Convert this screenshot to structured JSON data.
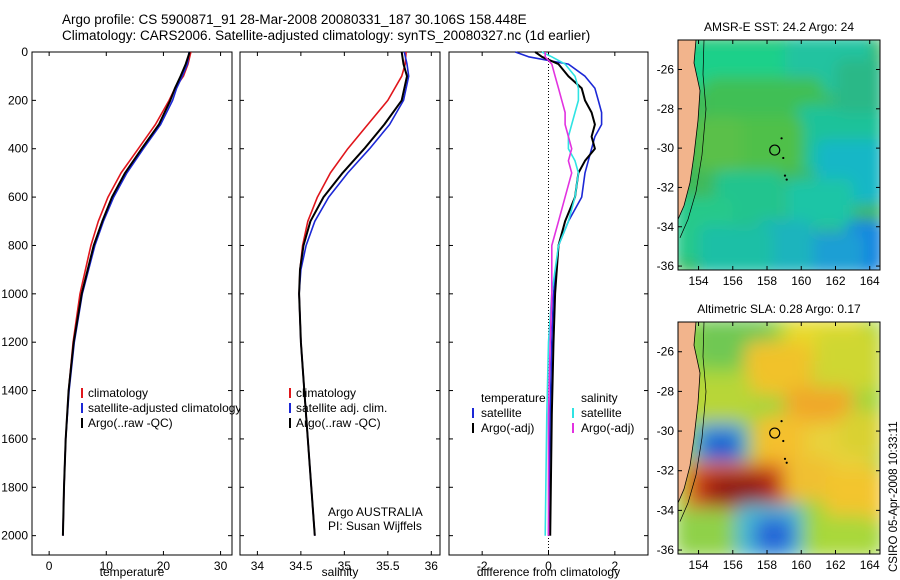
{
  "header": {
    "line1": "Argo profile: CS 5900871_91 28-Mar-2008 20080331_187 30.106S 158.448E",
    "line2": "Climatology: CARS2006. Satellite-adjusted climatology: synTS_20080327.nc (1d earlier)"
  },
  "footer_stamp": "CSIRO 05-Apr-2008 10:33:11",
  "colors": {
    "red": "#e0161c",
    "blue": "#1c28d6",
    "black": "#000000",
    "cyan": "#2fe3e3",
    "magenta": "#e232e0",
    "land": "#f2b48c"
  },
  "chart_data": [
    {
      "type": "line",
      "xlabel": "temperature",
      "ylabel": "",
      "xlim": [
        -3,
        32
      ],
      "ylim": [
        2080,
        0
      ],
      "xticks": [
        "0",
        "10",
        "20",
        "30"
      ],
      "yticks": [
        "0",
        "200",
        "400",
        "600",
        "800",
        "1000",
        "1200",
        "1400",
        "1600",
        "1800",
        "2000"
      ],
      "depth": [
        0,
        50,
        100,
        150,
        200,
        300,
        400,
        500,
        600,
        700,
        800,
        1000,
        1200,
        1400,
        1600,
        1800,
        2000
      ],
      "series": [
        {
          "name": "climatology",
          "color": "red",
          "values": [
            24.8,
            24.3,
            23.5,
            22.0,
            21.0,
            18.6,
            15.6,
            12.6,
            10.3,
            8.6,
            7.3,
            5.4,
            4.2,
            3.4,
            2.9,
            2.6,
            2.4
          ]
        },
        {
          "name": "satellite-adjusted climatology",
          "color": "blue",
          "values": [
            24.5,
            24.2,
            23.3,
            22.3,
            21.6,
            19.5,
            16.5,
            13.6,
            11.3,
            9.5,
            8.0,
            5.8,
            4.4,
            3.5,
            2.9,
            2.6,
            2.4
          ]
        },
        {
          "name": "Argo(..raw -QC)",
          "color": "black",
          "values": [
            24.6,
            23.9,
            23.0,
            22.0,
            21.2,
            19.2,
            16.2,
            13.3,
            11.0,
            9.3,
            7.8,
            5.7,
            4.3,
            3.4,
            2.9,
            2.6,
            2.4
          ]
        }
      ]
    },
    {
      "type": "line",
      "xlabel": "salinity",
      "ylabel": "",
      "xlim": [
        33.8,
        36.1
      ],
      "ylim": [
        2080,
        0
      ],
      "xticks": [
        "34",
        "34.5",
        "35",
        "35.5",
        "36"
      ],
      "depth": [
        0,
        50,
        100,
        200,
        300,
        400,
        500,
        600,
        700,
        800,
        900,
        1000,
        1200,
        1400,
        1600,
        1800,
        2000
      ],
      "series": [
        {
          "name": "climatology",
          "color": "red",
          "values": [
            35.71,
            35.7,
            35.66,
            35.5,
            35.27,
            35.04,
            34.84,
            34.69,
            34.58,
            34.52,
            34.49,
            34.48,
            34.5,
            34.54,
            34.58,
            34.62,
            34.66
          ]
        },
        {
          "name": "satellite adj. clim.",
          "color": "blue",
          "values": [
            35.69,
            35.72,
            35.74,
            35.68,
            35.52,
            35.29,
            35.04,
            34.82,
            34.66,
            34.56,
            34.5,
            34.48,
            34.5,
            34.54,
            34.58,
            34.62,
            34.66
          ]
        },
        {
          "name": "Argo(..raw -QC)",
          "color": "black",
          "values": [
            35.66,
            35.68,
            35.72,
            35.66,
            35.46,
            35.23,
            34.98,
            34.76,
            34.61,
            34.53,
            34.49,
            34.48,
            34.5,
            34.54,
            34.58,
            34.62,
            34.66
          ]
        }
      ],
      "annotation": [
        "Argo AUSTRALIA",
        "PI: Susan Wijffels"
      ]
    },
    {
      "type": "line",
      "xlabel": "difference from climatology",
      "ylabel": "",
      "xlim": [
        -3,
        3
      ],
      "ylim": [
        2080,
        0
      ],
      "xticks": [
        "-2",
        "0",
        "2"
      ],
      "depth": [
        0,
        20,
        50,
        100,
        150,
        200,
        250,
        300,
        350,
        400,
        450,
        500,
        600,
        700,
        800,
        1000,
        1200,
        1500,
        2000
      ],
      "legend_headers": [
        "temperature",
        "salinity"
      ],
      "series": [
        {
          "name": "satellite",
          "group": "temperature",
          "color": "blue",
          "values": [
            -1.0,
            -0.6,
            0.6,
            1.1,
            1.4,
            1.5,
            1.6,
            1.6,
            1.4,
            1.3,
            1.2,
            1.1,
            1.0,
            0.6,
            0.3,
            0.15,
            0.1,
            0.05,
            0.0
          ]
        },
        {
          "name": "Argo(-adj)",
          "group": "temperature",
          "color": "black",
          "values": [
            -0.4,
            -0.2,
            0.3,
            0.6,
            1.0,
            1.1,
            1.3,
            1.4,
            1.3,
            1.4,
            1.1,
            0.9,
            0.8,
            0.5,
            0.3,
            0.2,
            0.15,
            0.1,
            0.05
          ]
        },
        {
          "name": "satellite",
          "group": "salinity",
          "color": "cyan",
          "values": [
            -0.2,
            0.1,
            0.5,
            0.8,
            0.9,
            0.9,
            0.8,
            0.7,
            0.6,
            0.6,
            0.8,
            0.9,
            0.8,
            0.6,
            0.3,
            0.1,
            0.0,
            -0.05,
            -0.1
          ]
        },
        {
          "name": "Argo(-adj)",
          "group": "salinity",
          "color": "magenta",
          "values": [
            -0.1,
            -0.1,
            0.1,
            0.2,
            0.3,
            0.4,
            0.5,
            0.5,
            0.6,
            0.7,
            0.6,
            0.7,
            0.5,
            0.3,
            0.1,
            0.1,
            0.05,
            0.0,
            0.0
          ]
        }
      ]
    },
    {
      "type": "heatmap",
      "title": "AMSR-E SST: 24.2 Argo: 24",
      "xticks": [
        "154",
        "156",
        "158",
        "160",
        "162",
        "164"
      ],
      "yticks": [
        "-26",
        "-28",
        "-30",
        "-32",
        "-34",
        "-36"
      ],
      "xlim": [
        152.8,
        164.6
      ],
      "ylim": [
        -36.2,
        -24.5
      ],
      "argo_position": [
        158.45,
        -30.1
      ]
    },
    {
      "type": "heatmap",
      "title": "Altimetric SLA: 0.28 Argo: 0.17",
      "xticks": [
        "154",
        "156",
        "158",
        "160",
        "162",
        "164"
      ],
      "yticks": [
        "-26",
        "-28",
        "-30",
        "-32",
        "-34",
        "-36"
      ],
      "xlim": [
        152.8,
        164.6
      ],
      "ylim": [
        -36.2,
        -24.5
      ],
      "argo_position": [
        158.45,
        -30.1
      ]
    }
  ]
}
